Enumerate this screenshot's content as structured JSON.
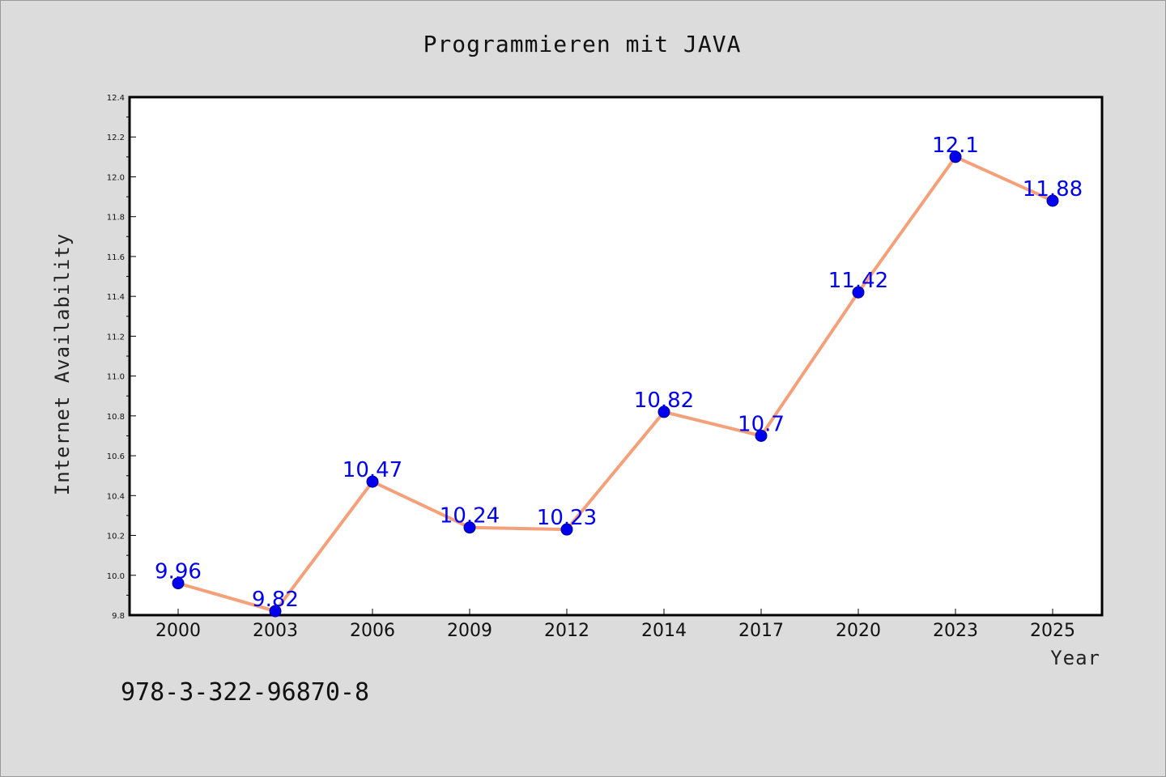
{
  "chart_data": {
    "type": "line",
    "title": "Programmieren mit JAVA",
    "xlabel": "Year",
    "ylabel": "Internet Availability",
    "categories": [
      "2000",
      "2003",
      "2006",
      "2009",
      "2012",
      "2014",
      "2017",
      "2020",
      "2023",
      "2025"
    ],
    "series": [
      {
        "values": [
          9.96,
          9.82,
          10.47,
          10.24,
          10.23,
          10.82,
          10.7,
          11.42,
          12.1,
          11.88
        ]
      }
    ],
    "data_labels": [
      "9.96",
      "9.82",
      "10.47",
      "10.24",
      "10.23",
      "10.82",
      "10.7",
      "11.42",
      "12.1",
      "11.88"
    ],
    "ylim": [
      9.8,
      12.4
    ],
    "yticks": [
      "9.8",
      "10.0",
      "10.2",
      "10.4",
      "10.6",
      "10.8",
      "11.0",
      "11.2",
      "11.4",
      "11.6",
      "11.8",
      "12.0",
      "12.2",
      "12.4"
    ],
    "grid": false,
    "colors": {
      "line": "#f4a07a",
      "marker": "#0000ee",
      "data_label": "#0000ee",
      "plot_background": "#ffffff",
      "figure_background": "#dcdcdc"
    }
  },
  "annotation": {
    "isbn": "978-3-322-96870-8"
  }
}
